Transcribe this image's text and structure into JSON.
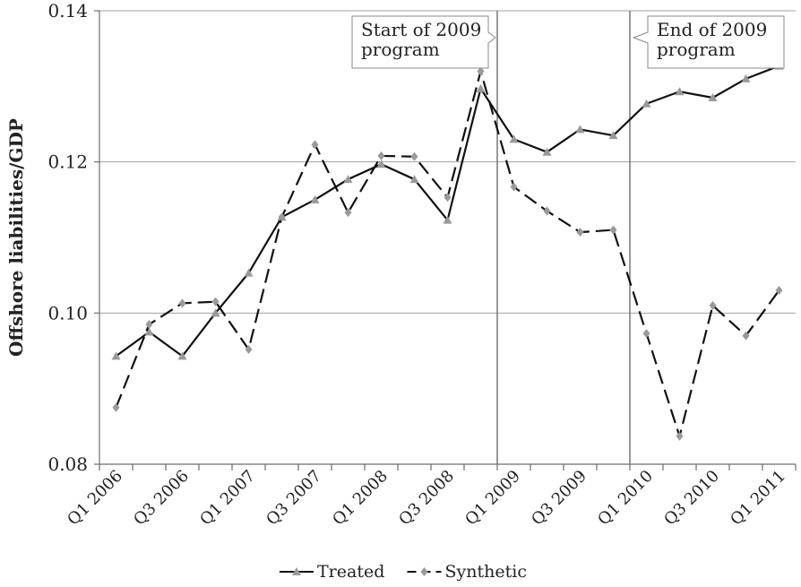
{
  "chart_data": {
    "type": "line",
    "title": "",
    "ylabel": "Offshore liabilities/GDP",
    "xlabel": "",
    "ylim": [
      0.08,
      0.14
    ],
    "yticks": [
      0.08,
      0.1,
      0.12,
      0.14
    ],
    "ytick_labels": [
      "0.08",
      "0.10",
      "0.12",
      "0.14"
    ],
    "grid": "horizontal",
    "legend_position": "bottom",
    "x": [
      "Q1 2006",
      "Q2 2006",
      "Q3 2006",
      "Q4 2006",
      "Q1 2007",
      "Q2 2007",
      "Q3 2007",
      "Q4 2007",
      "Q1 2008",
      "Q2 2008",
      "Q3 2008",
      "Q4 2008",
      "Q1 2009",
      "Q2 2009",
      "Q3 2009",
      "Q4 2009",
      "Q1 2010",
      "Q2 2010",
      "Q3 2010",
      "Q4 2010",
      "Q1 2011"
    ],
    "xtick_labels": [
      "Q1 2006",
      "Q3 2006",
      "Q1 2007",
      "Q3 2007",
      "Q1 2008",
      "Q3 2008",
      "Q1 2009",
      "Q3 2009",
      "Q1 2010",
      "Q3 2010",
      "Q1 2011"
    ],
    "series": [
      {
        "name": "Treated",
        "style": "solid",
        "marker": "triangle",
        "values": [
          0.0943,
          0.0975,
          0.0943,
          0.1,
          0.1053,
          0.1127,
          0.115,
          0.1177,
          0.1197,
          0.1177,
          0.1123,
          0.1297,
          0.123,
          0.1213,
          0.1243,
          0.1235,
          0.1277,
          0.1293,
          0.1285,
          0.131,
          0.1327
        ]
      },
      {
        "name": "Synthetic",
        "style": "dashed",
        "marker": "diamond",
        "values": [
          0.0875,
          0.0985,
          0.1013,
          0.1015,
          0.0952,
          0.1127,
          0.1223,
          0.1133,
          0.1208,
          0.1207,
          0.1153,
          0.132,
          0.1167,
          0.1135,
          0.1107,
          0.111,
          0.0973,
          0.0837,
          0.101,
          0.097,
          0.103
        ]
      }
    ],
    "annotations": [
      {
        "text_lines": [
          "Start of 2009",
          "program"
        ],
        "x_between": [
          "Q4 2008",
          "Q1 2009"
        ]
      },
      {
        "text_lines": [
          "End of 2009",
          "program"
        ],
        "x_between": [
          "Q4 2009",
          "Q1 2010"
        ]
      }
    ],
    "colors": {
      "treated_line": "#111111",
      "synthetic_line": "#111111",
      "markers": "#9a9a9a",
      "grid": "#a0a0a0",
      "axis": "#6e6e6e"
    }
  }
}
